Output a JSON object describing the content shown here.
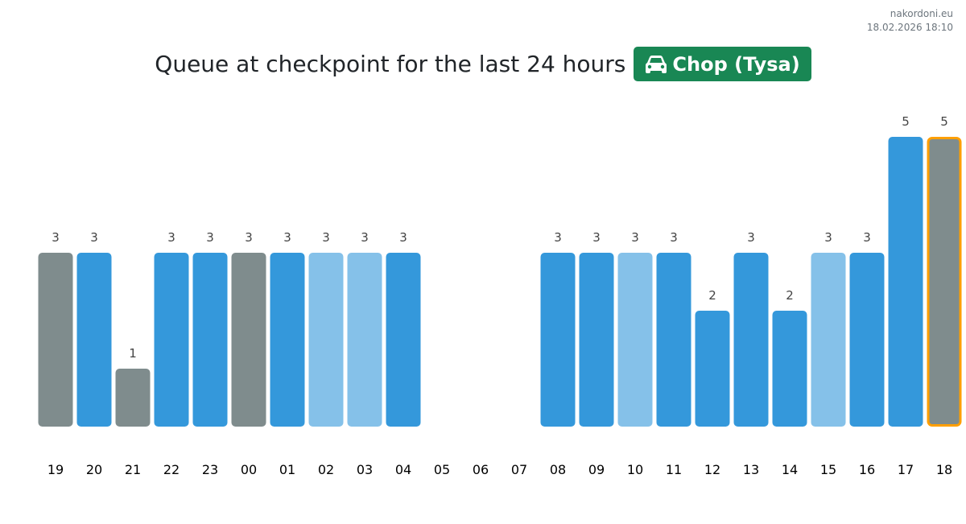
{
  "brand": {
    "site": "nakordoni.eu",
    "timestamp": "18.02.2026 18:10"
  },
  "header": {
    "title": "Queue at checkpoint for the last 24 hours",
    "checkpoint": "Chop (Tysa)",
    "checkpoint_icon": "car-icon",
    "badge_color": "#198754"
  },
  "colors": {
    "gray": "#7f8c8d",
    "blue": "#3498db",
    "light": "#85c1e9",
    "highlight": "#ff9f00"
  },
  "chart_data": {
    "type": "bar",
    "categories": [
      "19",
      "20",
      "21",
      "22",
      "23",
      "00",
      "01",
      "02",
      "03",
      "04",
      "05",
      "06",
      "07",
      "08",
      "09",
      "10",
      "11",
      "12",
      "13",
      "14",
      "15",
      "16",
      "17",
      "18"
    ],
    "values": [
      3,
      3,
      1,
      3,
      3,
      3,
      3,
      3,
      3,
      3,
      null,
      null,
      null,
      3,
      3,
      3,
      3,
      2,
      3,
      2,
      3,
      3,
      5,
      5
    ],
    "bar_colors": [
      "gray",
      "blue",
      "gray",
      "blue",
      "blue",
      "gray",
      "blue",
      "light",
      "light",
      "blue",
      null,
      null,
      null,
      "blue",
      "blue",
      "light",
      "blue",
      "blue",
      "blue",
      "blue",
      "light",
      "blue",
      "blue",
      "gray"
    ],
    "highlighted": "18",
    "ylim": [
      0,
      5
    ],
    "grid": false,
    "title": "",
    "xlabel": "",
    "ylabel": ""
  }
}
